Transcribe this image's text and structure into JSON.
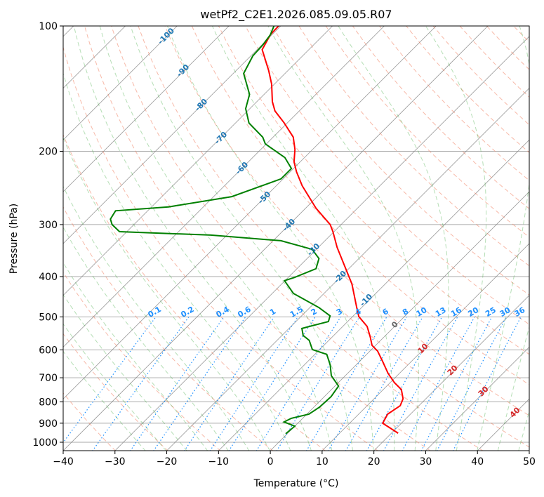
{
  "chart_data": {
    "type": "line",
    "subtype": "skew-t log-p",
    "title": "wetPf2_C2E1.2026.085.09.05.R07",
    "xlabel": "Temperature (°C)",
    "ylabel": "Pressure (hPa)",
    "xlim": [
      -40,
      50
    ],
    "ylim": [
      1050,
      100
    ],
    "xticks": [
      -40,
      -30,
      -20,
      -10,
      0,
      10,
      20,
      30,
      40,
      50
    ],
    "yticks": [
      100,
      200,
      300,
      400,
      500,
      600,
      700,
      800,
      900,
      1000
    ],
    "grid": true,
    "series": [
      {
        "name": "Temperature",
        "color": "#ff0000",
        "pressure": [
          951,
          900,
          856,
          817,
          786,
          747,
          719,
          683,
          640,
          604,
          585,
          558,
          527,
          499,
          473,
          417,
          340,
          312,
          300,
          274,
          242,
          224,
          212,
          198,
          185,
          171,
          160,
          152,
          138,
          128,
          114,
          105,
          100
        ],
        "temperature": [
          21.3,
          16.4,
          15.6,
          16.4,
          15.6,
          13.5,
          10.8,
          7.8,
          4.5,
          1.5,
          -0.7,
          -2.7,
          -5.3,
          -8.8,
          -11.1,
          -16.4,
          -26.4,
          -30.2,
          -32.1,
          -38.0,
          -45.0,
          -48.8,
          -51.2,
          -53.4,
          -56.1,
          -60.6,
          -64.7,
          -67.0,
          -70.5,
          -73.7,
          -79.0,
          -80.3,
          -80.4
        ]
      },
      {
        "name": "Dewpoint",
        "color": "#008000",
        "pressure": [
          954,
          915,
          894,
          876,
          856,
          823,
          777,
          733,
          692,
          652,
          615,
          599,
          569,
          554,
          533,
          525,
          513,
          497,
          475,
          456,
          439,
          409,
          402,
          383,
          362,
          344,
          328,
          318,
          312,
          300,
          291,
          278,
          272,
          257,
          233,
          220,
          207,
          192,
          185,
          171,
          158,
          146,
          130,
          118,
          111,
          105,
          100
        ],
        "temperature": [
          -0.3,
          0,
          -2.9,
          -2.2,
          0.4,
          1.1,
          1.3,
          0.7,
          -2.7,
          -5,
          -7.7,
          -11.4,
          -13.8,
          -15.9,
          -17.5,
          -16.1,
          -13.7,
          -14.5,
          -18.2,
          -22.2,
          -25.9,
          -30.1,
          -28.8,
          -26.3,
          -27.7,
          -30.8,
          -38.5,
          -53.1,
          -71.4,
          -74.2,
          -75.6,
          -76.2,
          -66.7,
          -56.5,
          -50.4,
          -50.4,
          -53.8,
          -60.2,
          -62,
          -67.4,
          -70.8,
          -72.8,
          -78,
          -79.6,
          -79.8,
          -80.3,
          -81.3
        ]
      }
    ],
    "mixing_ratio_labels": [
      "0.1",
      "0.2",
      "0.4",
      "0.6",
      "1",
      "1.5",
      "2",
      "3",
      "4",
      "6",
      "8",
      "10",
      "13",
      "16",
      "20",
      "25",
      "30",
      "36"
    ],
    "blue_isotherm_labels": [
      "-100",
      "-90",
      "-80",
      "-70",
      "-60",
      "-50",
      "-40",
      "-30",
      "-20",
      "-10"
    ],
    "red_isotherm_labels": [
      "10",
      "20",
      "30",
      "40"
    ],
    "zero_label": "0",
    "colors": {
      "temperature": "#ff0000",
      "dewpoint": "#008000",
      "dry_adiabat": "#f08060",
      "moist_adiabat": "#2ca02c",
      "mixing_ratio": "#1e90ff",
      "isotherm": "#808080"
    }
  }
}
